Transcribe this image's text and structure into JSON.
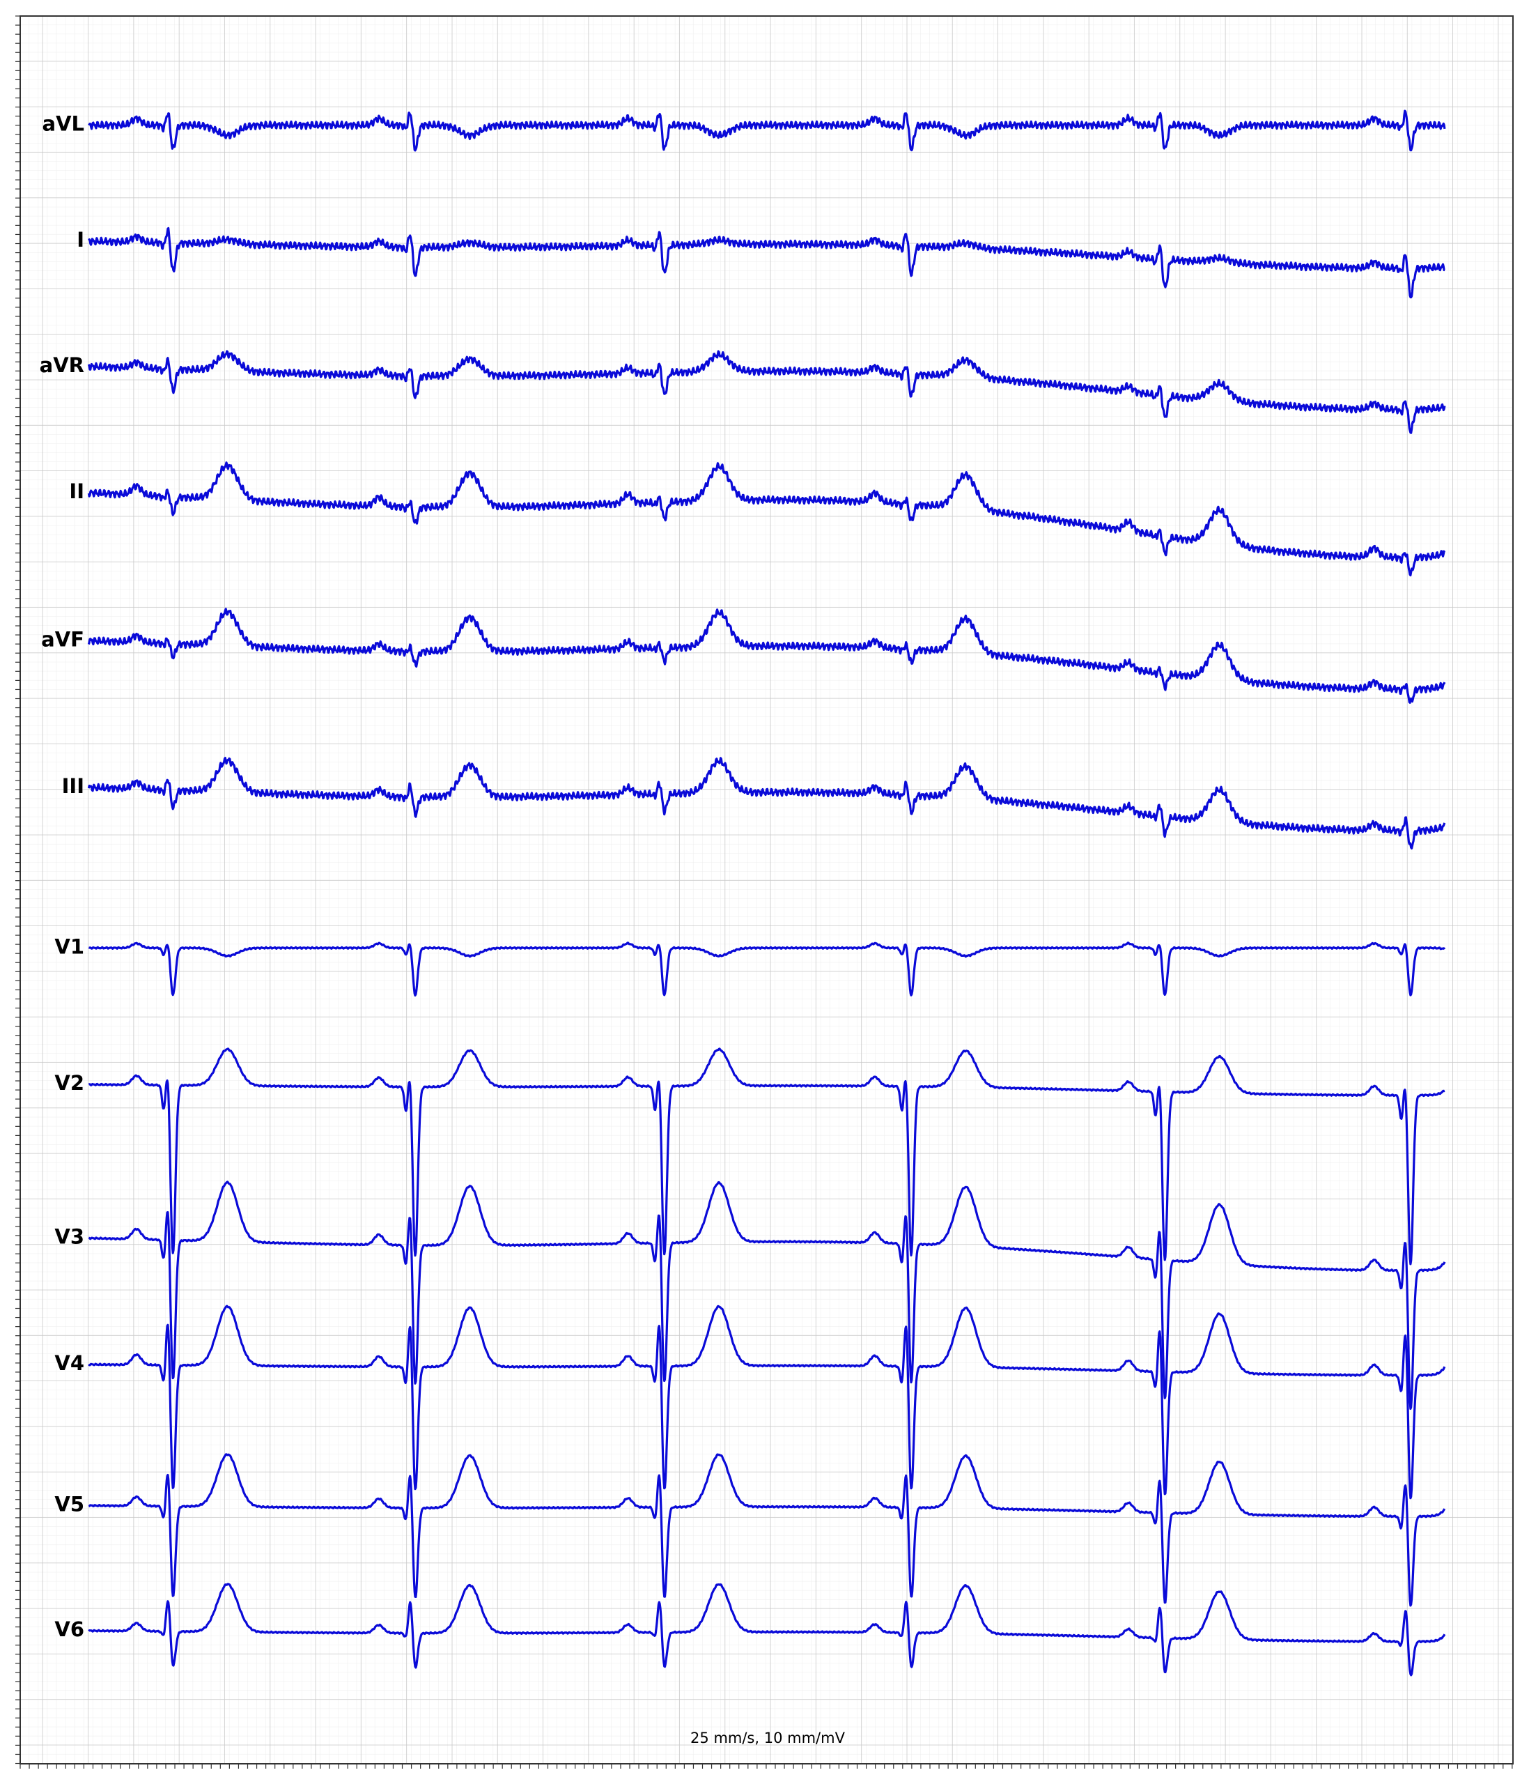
{
  "leads": [
    "aVL",
    "I",
    "aVR",
    "II",
    "aVF",
    "III",
    "V1",
    "V2",
    "V3",
    "V4",
    "V5",
    "V6"
  ],
  "footer": "25 mm/s, 10 mm/mV"
}
